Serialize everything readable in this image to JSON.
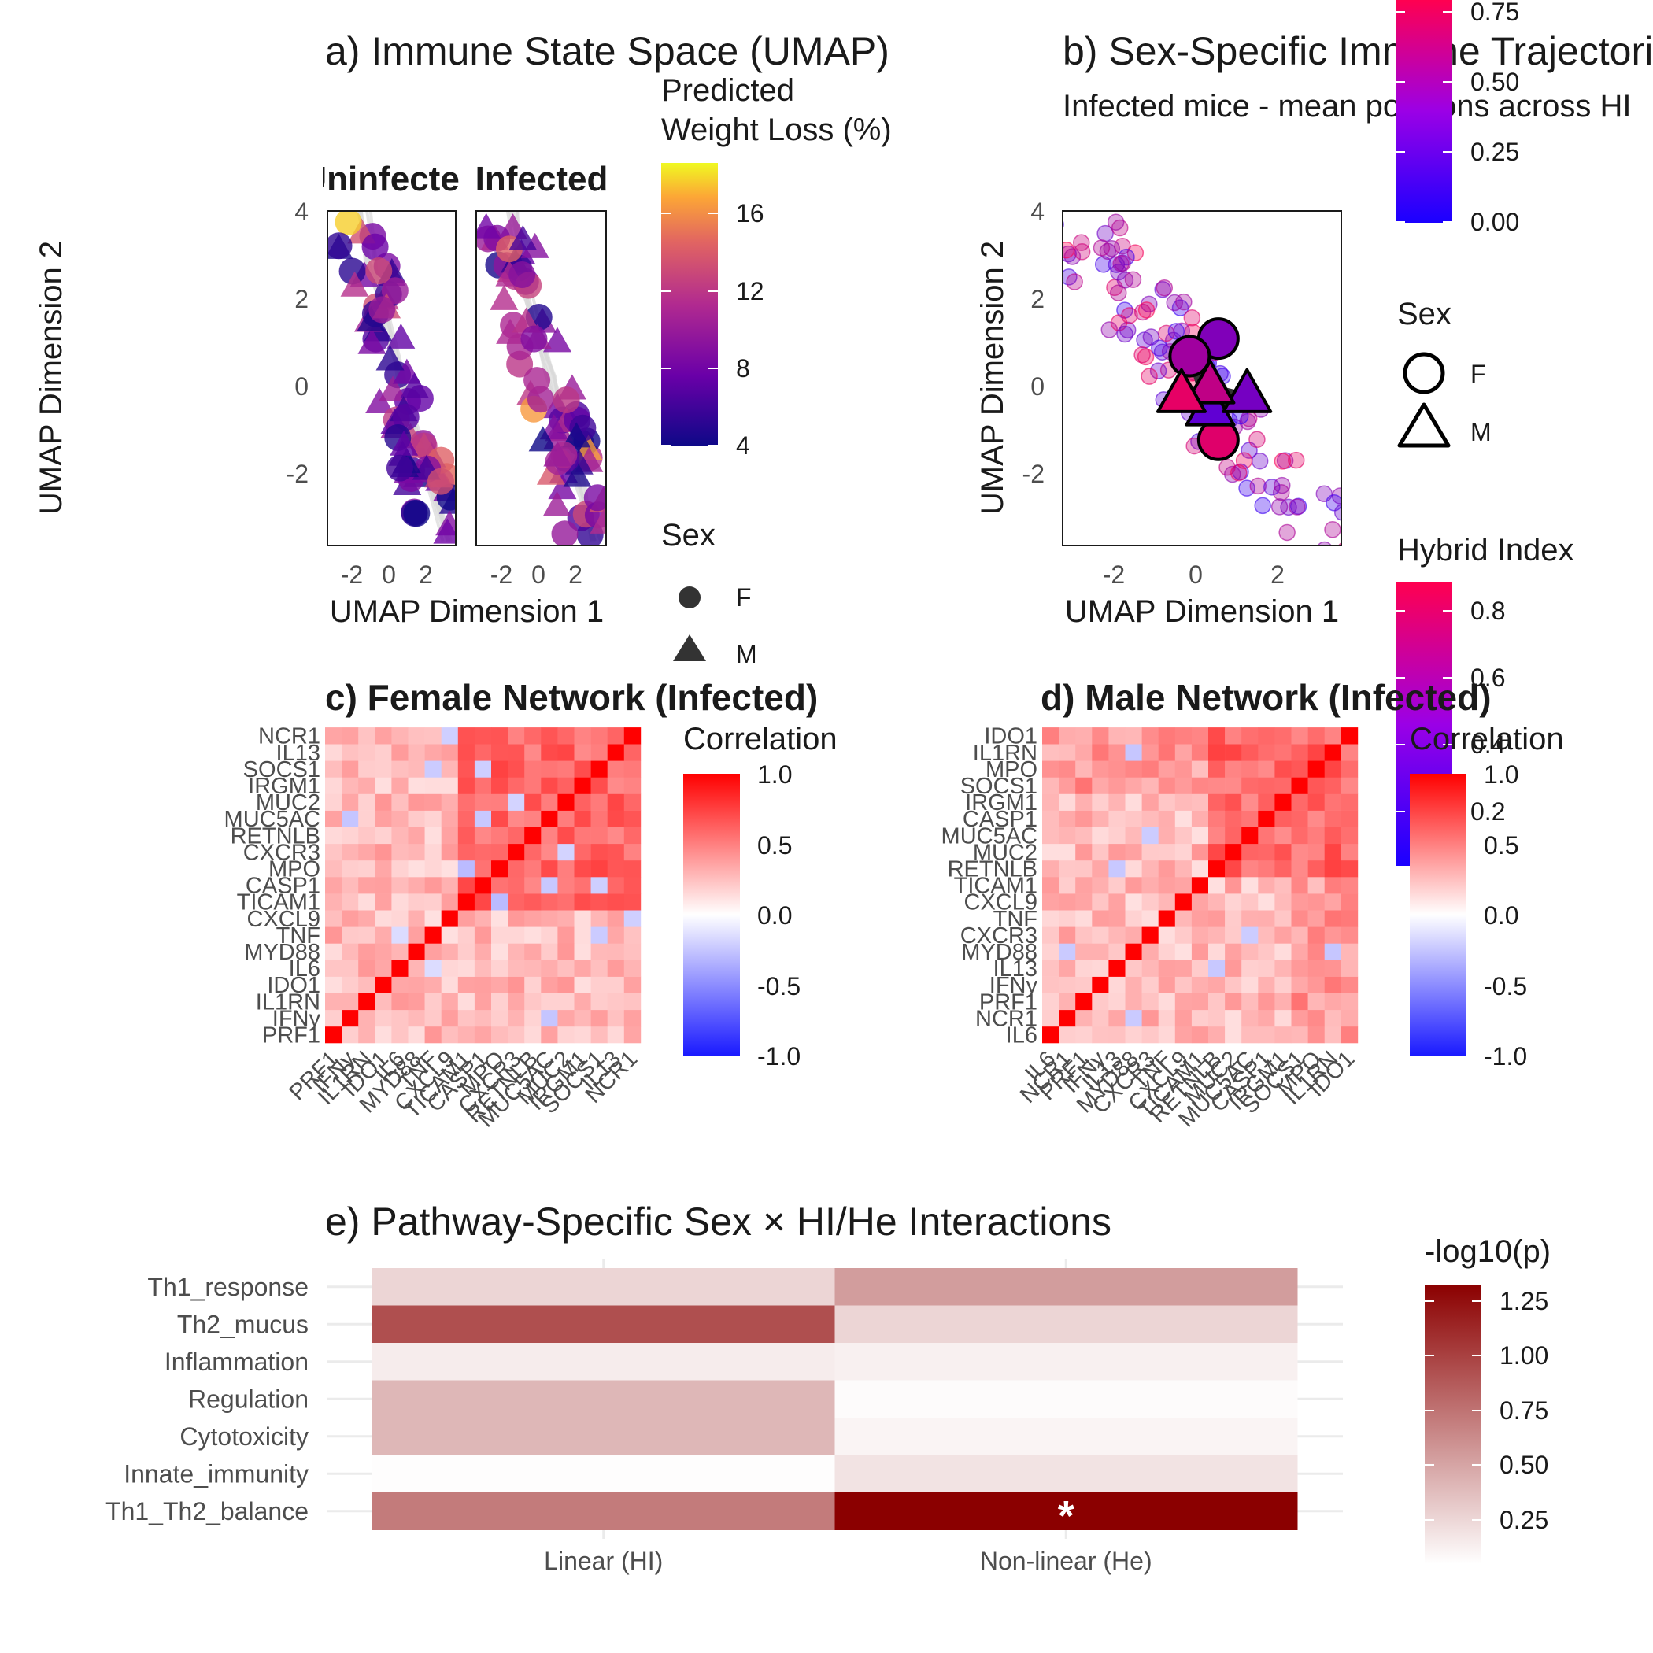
{
  "panel_a": {
    "title": "a) Immune State Space (UMAP)",
    "facets": [
      "Uninfected",
      "Infected"
    ],
    "xlabel": "UMAP Dimension 1",
    "ylabel": "UMAP Dimension 2",
    "x_ticks": [
      "-2",
      "0",
      "2"
    ],
    "y_ticks": [
      "4",
      "2",
      "0",
      "-2"
    ],
    "colorbar_title_line1": "Predicted",
    "colorbar_title_line2": "Weight Loss (%)",
    "colorbar_ticks": [
      "16",
      "12",
      "8",
      "4"
    ],
    "sex_legend_title": "Sex",
    "sex_legend": [
      "F",
      "M"
    ]
  },
  "panel_b": {
    "title": "b) Sex-Specific Immune Trajectories",
    "subtitle": "Infected mice - mean positions across HI",
    "xlabel": "UMAP Dimension 1",
    "ylabel": "UMAP Dimension 2",
    "x_ticks": [
      "-2",
      "0",
      "2"
    ],
    "y_ticks": [
      "4",
      "2",
      "0",
      "-2"
    ],
    "colorbar_top_ticks": [
      "0.75",
      "0.50",
      "0.25",
      "0.00"
    ],
    "sex_legend_title": "Sex",
    "sex_legend": [
      "F",
      "M"
    ],
    "hybrid_legend_title": "Hybrid Index",
    "hybrid_ticks": [
      "0.8",
      "0.6",
      "0.4",
      "0.2"
    ]
  },
  "panel_c": {
    "title": "c) Female Network (Infected)",
    "legend_title": "Correlation",
    "legend_ticks": [
      "1.0",
      "0.5",
      "0.0",
      "-0.5",
      "-1.0"
    ],
    "genes": [
      "PRF1",
      "IFNy",
      "IL1RN",
      "IDO1",
      "IL6",
      "MYD88",
      "TNF",
      "CXCL9",
      "TICAM1",
      "CASP1",
      "MPO",
      "CXCR3",
      "RETNLB",
      "MUC5AC",
      "MUC2",
      "IRGM1",
      "SOCS1",
      "IL13",
      "NCR1"
    ]
  },
  "panel_d": {
    "title": "d) Male Network (Infected)",
    "legend_title": "Correlation",
    "legend_ticks": [
      "1.0",
      "0.5",
      "0.0",
      "-0.5",
      "-1.0"
    ],
    "genes": [
      "IL6",
      "NCR1",
      "PRF1",
      "IFNy",
      "IL13",
      "MYD88",
      "CXCR3",
      "TNF",
      "CXCL9",
      "TICAM1",
      "RETNLB",
      "MUC2",
      "MUC5AC",
      "CASP1",
      "IRGM1",
      "SOCS1",
      "MPO",
      "IL1RN",
      "IDO1"
    ]
  },
  "panel_e": {
    "title": "e) Pathway-Specific Sex × HI/He Interactions",
    "legend_title": "-log10(p)",
    "legend_ticks": [
      "1.25",
      "1.00",
      "0.75",
      "0.50",
      "0.25"
    ],
    "significance_mark": "*"
  },
  "colors": {
    "corr_neg": "#1a1aff",
    "corr_mid": "#ffffff",
    "corr_pos": "#ff0000",
    "p_low": "#ffffff",
    "p_high": "#8b0000",
    "hybrid_low": "#2b00ff",
    "hybrid_high": "#ff0050",
    "grid": "#ebebeb"
  },
  "chart_data": [
    {
      "type": "heatmap",
      "title": "e) Pathway-Specific Sex × HI/He Interactions",
      "x": [
        "Linear (HI)",
        "Non-linear (He)"
      ],
      "y": [
        "Th1_response",
        "Th2_mucus",
        "Inflammation",
        "Regulation",
        "Cytotoxicity",
        "Innate_immunity",
        "Th1_Th2_balance"
      ],
      "values": [
        [
          0.22,
          0.52
        ],
        [
          0.93,
          0.22
        ],
        [
          0.1,
          0.08
        ],
        [
          0.38,
          0.02
        ],
        [
          0.38,
          0.06
        ],
        [
          0.01,
          0.15
        ],
        [
          0.7,
          1.35
        ]
      ],
      "significant": [
        [
          false,
          false
        ],
        [
          false,
          false
        ],
        [
          false,
          false
        ],
        [
          false,
          false
        ],
        [
          false,
          false
        ],
        [
          false,
          false
        ],
        [
          false,
          true
        ]
      ],
      "legend_title": "-log10(p)",
      "colorscale_range": [
        0,
        1.35
      ]
    },
    {
      "type": "scatter",
      "title": "b) Sex-Specific Immune Trajectories",
      "xlabel": "UMAP Dimension 1",
      "ylabel": "UMAP Dimension 2",
      "xlim": [
        -3.2,
        3.6
      ],
      "ylim": [
        -3.6,
        4.0
      ],
      "means": [
        {
          "sex": "F",
          "x": 0.6,
          "y": 1.1,
          "hi": 0.4
        },
        {
          "sex": "F",
          "x": -0.1,
          "y": 0.7,
          "hi": 0.55
        },
        {
          "sex": "F",
          "x": 0.6,
          "y": -1.2,
          "hi": 0.85
        },
        {
          "sex": "M",
          "x": 0.4,
          "y": -0.5,
          "hi": 0.25
        },
        {
          "sex": "M",
          "x": 1.3,
          "y": -0.2,
          "hi": 0.35
        },
        {
          "sex": "M",
          "x": 0.4,
          "y": 0.0,
          "hi": 0.7
        },
        {
          "sex": "M",
          "x": -0.3,
          "y": -0.2,
          "hi": 0.88
        }
      ]
    },
    {
      "type": "scatter",
      "title": "a) Immune State Space (UMAP)",
      "facets": [
        "Uninfected",
        "Infected"
      ],
      "xlim": [
        -3.2,
        3.6
      ],
      "ylim": [
        -3.6,
        4.0
      ],
      "color_by": "Predicted Weight Loss (%)",
      "color_range": [
        4,
        18
      ]
    },
    {
      "type": "heatmap",
      "title": "c) Female Network (Infected)",
      "colorscale_range": [
        -1,
        1
      ]
    },
    {
      "type": "heatmap",
      "title": "d) Male Network (Infected)",
      "colorscale_range": [
        -1,
        1
      ]
    }
  ]
}
